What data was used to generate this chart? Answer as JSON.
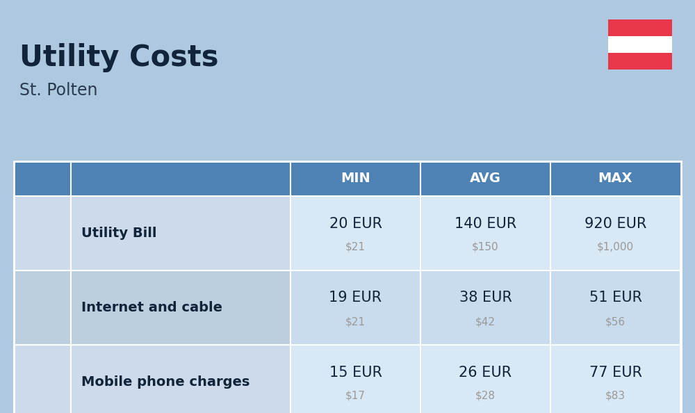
{
  "title": "Utility Costs",
  "subtitle": "St. Polten",
  "background_color": "#adc8df",
  "header_bg_color": "#4e82b4",
  "header_text_color": "#ffffff",
  "row_bg_light": "#ccdaeb",
  "row_bg_dark": "#bccfdf",
  "val_col_bg": "#d8e8f4",
  "table_border_color": "#ffffff",
  "rows": [
    {
      "label": "Utility Bill",
      "min_eur": "20 EUR",
      "min_usd": "$21",
      "avg_eur": "140 EUR",
      "avg_usd": "$150",
      "max_eur": "920 EUR",
      "max_usd": "$1,000"
    },
    {
      "label": "Internet and cable",
      "min_eur": "19 EUR",
      "min_usd": "$21",
      "avg_eur": "38 EUR",
      "avg_usd": "$42",
      "max_eur": "51 EUR",
      "max_usd": "$56"
    },
    {
      "label": "Mobile phone charges",
      "min_eur": "15 EUR",
      "min_usd": "$17",
      "avg_eur": "26 EUR",
      "avg_usd": "$28",
      "max_eur": "77 EUR",
      "max_usd": "$83"
    }
  ],
  "title_fontsize": 30,
  "subtitle_fontsize": 17,
  "header_fontsize": 14,
  "label_fontsize": 14,
  "value_fontsize": 15,
  "usd_fontsize": 11,
  "flag_red": "#e8364a",
  "flag_white": "#ffffff"
}
